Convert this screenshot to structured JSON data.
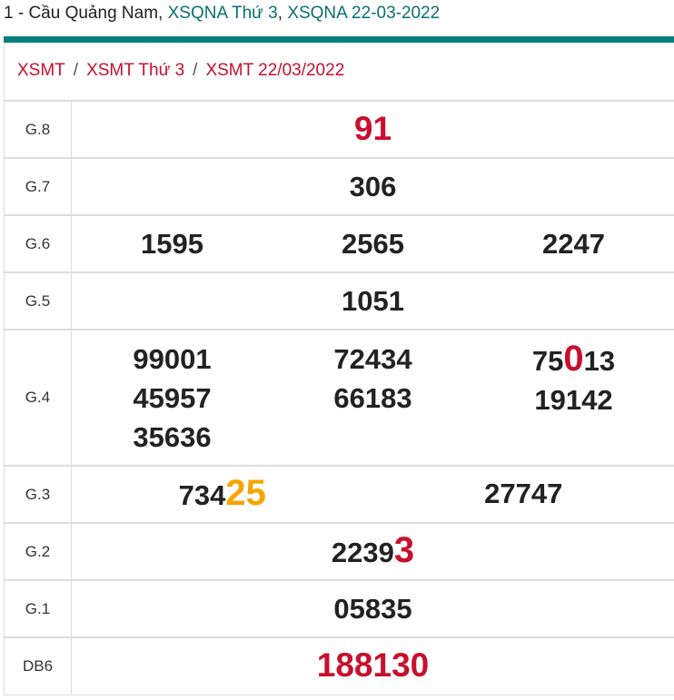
{
  "header": {
    "prefix": "1 - Cầu Quảng Nam, ",
    "link1": "XSQNA Thứ 3",
    "comma": ", ",
    "link2": "XSQNA 22-03-2022",
    "accent": "#087f7f"
  },
  "breadcrumb": {
    "items": [
      "XSMT",
      "XSMT Thứ 3",
      "XSMT 22/03/2022"
    ],
    "separator": "/"
  },
  "colors": {
    "red": "#c8102e",
    "orange": "#f7a400"
  },
  "rows": [
    {
      "label": "G.8",
      "h": 63,
      "style": "big",
      "cols": [
        [
          [
            {
              "t": "91"
            }
          ]
        ]
      ]
    },
    {
      "label": "G.7",
      "h": 63,
      "cols": [
        [
          [
            {
              "t": "306"
            }
          ]
        ]
      ]
    },
    {
      "label": "G.6",
      "h": 63,
      "cols": [
        [
          [
            {
              "t": "1595"
            }
          ]
        ],
        [
          [
            {
              "t": "2565"
            }
          ]
        ],
        [
          [
            {
              "t": "2247"
            }
          ]
        ]
      ]
    },
    {
      "label": "G.5",
      "h": 63,
      "cols": [
        [
          [
            {
              "t": "1051"
            }
          ]
        ]
      ]
    },
    {
      "label": "G.4",
      "h": 150,
      "cols": [
        [
          [
            {
              "t": "99001"
            }
          ],
          [
            {
              "t": "45957"
            }
          ],
          [
            {
              "t": "35636"
            }
          ]
        ],
        [
          [
            {
              "t": "72434"
            }
          ],
          [
            {
              "t": "66183"
            }
          ]
        ],
        [
          [
            {
              "t": "75"
            },
            {
              "t": "0",
              "hl": "red"
            },
            {
              "t": "13"
            }
          ],
          [
            {
              "t": "19142"
            }
          ]
        ]
      ]
    },
    {
      "label": "G.3",
      "h": 63,
      "cols": [
        [
          [
            {
              "t": "734"
            },
            {
              "t": "25",
              "hl": "org"
            }
          ]
        ],
        [
          [
            {
              "t": "27747"
            }
          ]
        ]
      ]
    },
    {
      "label": "G.2",
      "h": 63,
      "cols": [
        [
          [
            {
              "t": "2239"
            },
            {
              "t": "3",
              "hl": "red"
            }
          ]
        ]
      ]
    },
    {
      "label": "G.1",
      "h": 63,
      "cols": [
        [
          [
            {
              "t": "05835"
            }
          ]
        ]
      ]
    },
    {
      "label": "DB6",
      "h": 63,
      "style": "big",
      "cols": [
        [
          [
            {
              "t": "188130"
            }
          ]
        ]
      ]
    }
  ]
}
